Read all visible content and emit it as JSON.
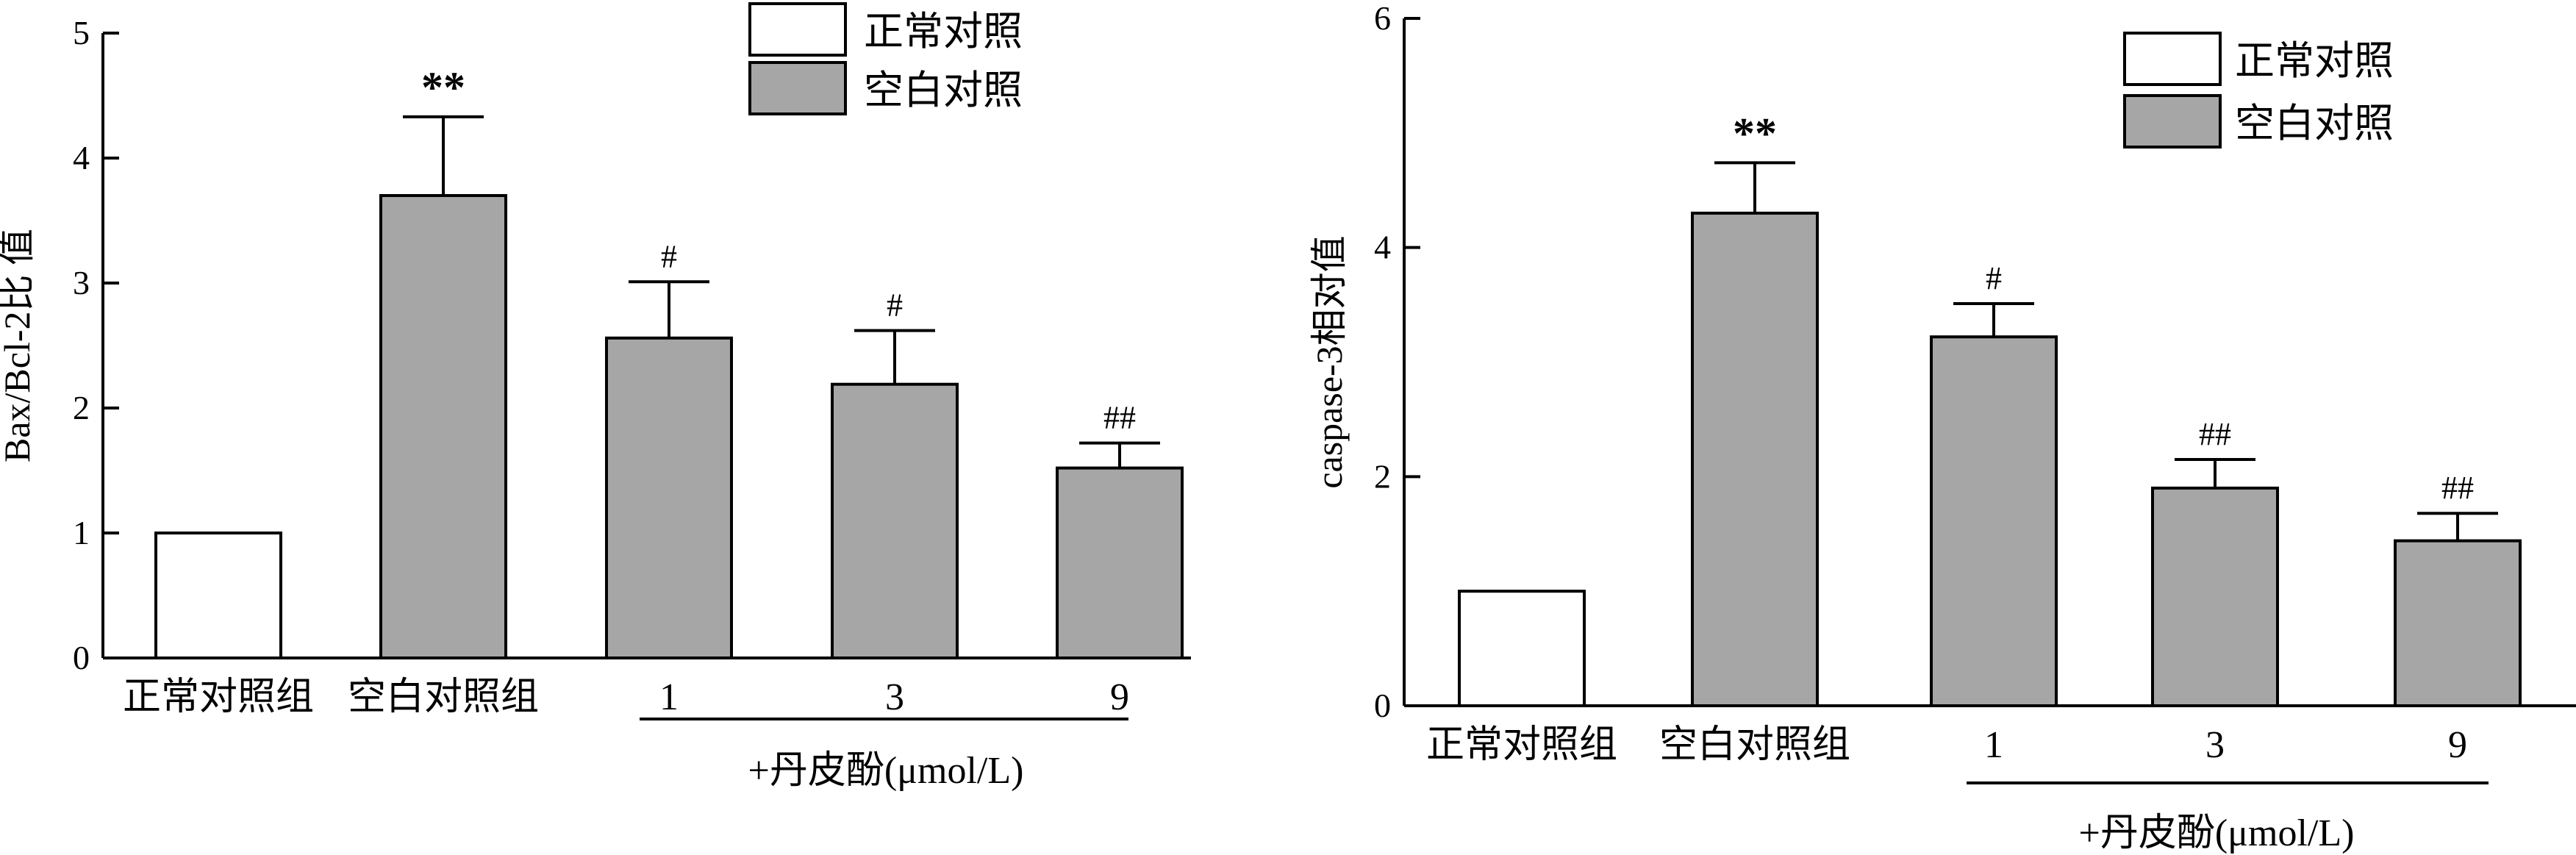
{
  "colors": {
    "normal_fill": "#ffffff",
    "blank_fill": "#a6a6a6",
    "stroke": "#000000"
  },
  "legend": {
    "items": [
      "正常对照",
      "空白对照"
    ]
  },
  "chart_data": [
    {
      "type": "bar",
      "ylabel": "Bax/Bcl-2比 值",
      "ylim": [
        0,
        5
      ],
      "yticks": [
        "0",
        "1",
        "2",
        "3",
        "4",
        "5"
      ],
      "categories": [
        "正常对照组",
        "空白对照组",
        "1",
        "3",
        "9"
      ],
      "values": [
        1.0,
        3.7,
        2.56,
        2.19,
        1.52
      ],
      "errors": [
        0,
        0.63,
        0.45,
        0.43,
        0.2
      ],
      "annotations": [
        "",
        "**",
        "#",
        "#",
        "##"
      ],
      "fills": [
        "normal",
        "blank",
        "blank",
        "blank",
        "blank"
      ],
      "group_label": "+丹皮酚(μmol/L)",
      "legend": [
        "正常对照",
        "空白对照"
      ],
      "grid": false,
      "legend_position": "top-right"
    },
    {
      "type": "bar",
      "ylabel": "caspase-3相对值",
      "ylim": [
        0,
        6
      ],
      "yticks": [
        "0",
        "2",
        "4",
        "6"
      ],
      "categories": [
        "正常对照组",
        "空白对照组",
        "1",
        "3",
        "9"
      ],
      "values": [
        1.0,
        4.3,
        3.22,
        1.9,
        1.44
      ],
      "errors": [
        0,
        0.44,
        0.29,
        0.25,
        0.24
      ],
      "annotations": [
        "",
        "**",
        "#",
        "##",
        "##"
      ],
      "fills": [
        "normal",
        "blank",
        "blank",
        "blank",
        "blank"
      ],
      "group_label": "+丹皮酚(μmol/L)",
      "legend": [
        "正常对照",
        "空白对照"
      ],
      "grid": false,
      "legend_position": "top-right"
    }
  ]
}
